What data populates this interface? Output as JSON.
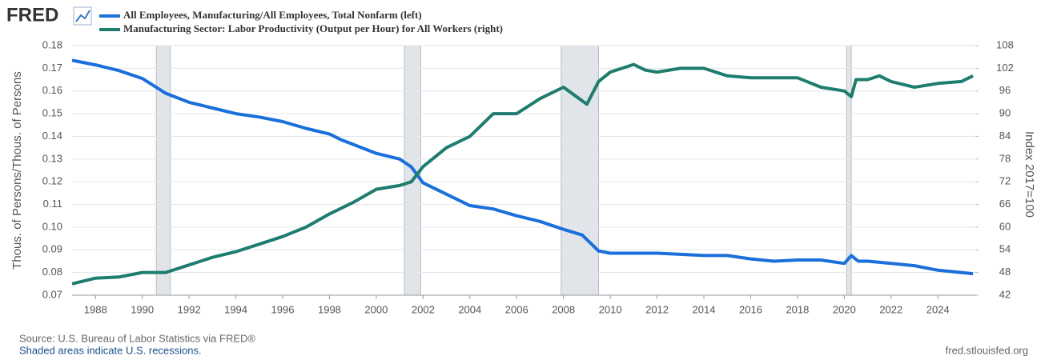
{
  "logo": "FRED",
  "chart_data": {
    "type": "line",
    "xlim": [
      1987,
      2025.6
    ],
    "xticks": [
      1988,
      1990,
      1992,
      1994,
      1996,
      1998,
      2000,
      2002,
      2004,
      2006,
      2008,
      2010,
      2012,
      2014,
      2016,
      2018,
      2020,
      2022,
      2024
    ],
    "ylim": [
      0.07,
      0.18
    ],
    "yticks": [
      0.07,
      0.08,
      0.09,
      {
        "value": 0.1,
        "label": "0.10"
      },
      0.11,
      0.12,
      0.13,
      0.14,
      0.15,
      0.16,
      0.17,
      0.18
    ],
    "y2lim": [
      42,
      108
    ],
    "y2ticks": [
      42,
      48,
      54,
      60,
      66,
      72,
      78,
      84,
      90,
      96,
      102,
      108
    ],
    "ylabel": "Thous. of Persons/Thous. of Persons",
    "y2label": "Index 2017=100",
    "grid": true,
    "recessions": [
      [
        1990.6,
        1991.2
      ],
      [
        2001.2,
        2001.9
      ],
      [
        2007.9,
        2009.5
      ],
      [
        2020.1,
        2020.3
      ]
    ],
    "series": [
      {
        "name": "All Employees, Manufacturing/All Employees, Total Nonfarm (left)",
        "color": "#1a6fdb",
        "axis": "y",
        "x": [
          1987,
          1988,
          1989,
          1990,
          1991,
          1992,
          1993,
          1994,
          1995,
          1996,
          1997,
          1998,
          1998.5,
          1999,
          2000,
          2001,
          2001.5,
          2002,
          2003,
          2004,
          2005,
          2006,
          2007,
          2008,
          2008.8,
          2009.5,
          2010,
          2011,
          2012,
          2013,
          2014,
          2015,
          2016,
          2017,
          2018,
          2019,
          2020,
          2020.3,
          2020.6,
          2021,
          2022,
          2023,
          2024,
          2025.5
        ],
        "values": [
          0.1735,
          0.1715,
          0.169,
          0.1655,
          0.159,
          0.155,
          0.1525,
          0.15,
          0.1485,
          0.1465,
          0.1435,
          0.141,
          0.1385,
          0.1365,
          0.1325,
          0.13,
          0.1265,
          0.1195,
          0.1145,
          0.1095,
          0.108,
          0.105,
          0.1025,
          0.099,
          0.0965,
          0.0895,
          0.0885,
          0.0885,
          0.0885,
          0.088,
          0.0875,
          0.0875,
          0.086,
          0.085,
          0.0855,
          0.0855,
          0.084,
          0.0875,
          0.085,
          0.085,
          0.084,
          0.083,
          0.081,
          0.0795
        ]
      },
      {
        "name": "Manufacturing Sector: Labor Productivity (Output per Hour) for All Workers (right)",
        "color": "#1e7d6e",
        "axis": "y2",
        "x": [
          1987,
          1988,
          1989,
          1990,
          1991,
          1992,
          1993,
          1994,
          1995,
          1996,
          1997,
          1998,
          1999,
          2000,
          2001,
          2001.5,
          2002,
          2003,
          2004,
          2005,
          2006,
          2007,
          2008,
          2009,
          2009.5,
          2010,
          2011,
          2011.5,
          2012,
          2013,
          2014,
          2015,
          2016,
          2017,
          2018,
          2019,
          2020,
          2020.3,
          2020.5,
          2021,
          2021.5,
          2022,
          2023,
          2024,
          2025,
          2025.5
        ],
        "values": [
          45,
          46.5,
          46.8,
          48,
          48,
          50,
          52,
          53.5,
          55.5,
          57.5,
          60,
          63.5,
          66.5,
          70,
          71,
          72,
          76,
          81,
          84,
          90,
          90,
          94,
          97,
          92.5,
          98.5,
          101,
          103,
          101.5,
          101,
          102,
          102,
          100,
          99.5,
          99.5,
          99.5,
          97,
          96,
          94.5,
          99,
          99,
          100,
          98.5,
          97,
          98,
          98.5,
          100
        ]
      }
    ],
    "source": "Source: U.S. Bureau of Labor Statistics via FRED®",
    "note": "Shaded areas indicate U.S. recessions.",
    "url": "fred.stlouisfed.org"
  }
}
